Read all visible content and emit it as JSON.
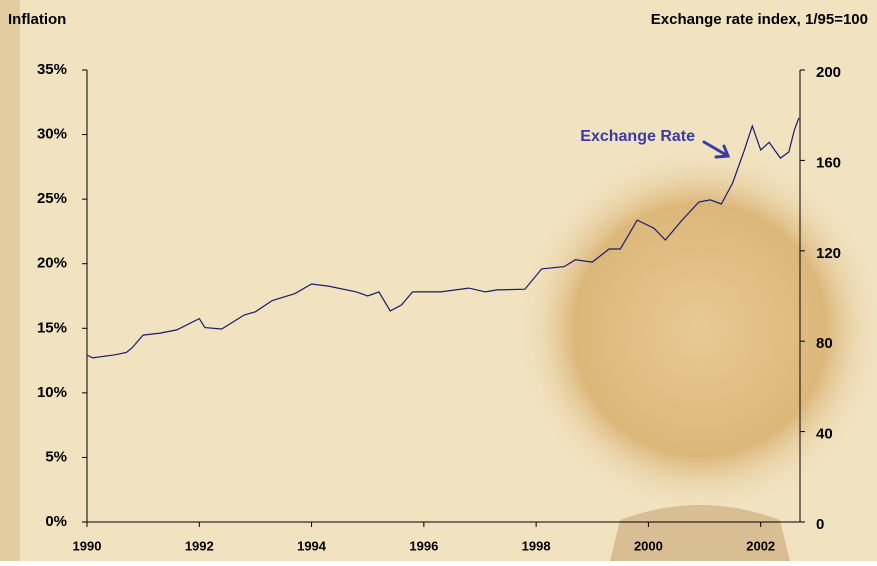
{
  "chart_data": {
    "type": "line",
    "y_label": "Inflation",
    "y2_label": "Exchange rate index, 1/95=100",
    "annotation": "Exchange Rate",
    "xlim": [
      1990,
      2002.7
    ],
    "xticks": [
      1990,
      1992,
      1994,
      1996,
      1998,
      2000,
      2002
    ],
    "ylim": [
      0,
      35
    ],
    "yticks": [
      {
        "value": 0,
        "label": "0%"
      },
      {
        "value": 5,
        "label": "5%"
      },
      {
        "value": 10,
        "label": "10%"
      },
      {
        "value": 15,
        "label": "15%"
      },
      {
        "value": 20,
        "label": "20%"
      },
      {
        "value": 25,
        "label": "25%"
      },
      {
        "value": 30,
        "label": "30%"
      },
      {
        "value": 35,
        "label": "35%"
      }
    ],
    "y2lim": [
      0,
      200
    ],
    "y2ticks": [
      0,
      40,
      80,
      120,
      160,
      200
    ],
    "x": [
      1990.0,
      1990.1,
      1990.5,
      1990.7,
      1990.8,
      1991.0,
      1991.3,
      1991.6,
      1992.0,
      1992.1,
      1992.4,
      1992.8,
      1993.0,
      1993.3,
      1993.7,
      1994.0,
      1994.3,
      1994.8,
      1995.0,
      1995.2,
      1995.4,
      1995.6,
      1995.8,
      1996.3,
      1996.8,
      1997.1,
      1997.3,
      1997.8,
      1998.1,
      1998.5,
      1998.7,
      1999.0,
      1999.3,
      1999.5,
      1999.8,
      2000.1,
      2000.3,
      2000.6,
      2000.9,
      2001.1,
      2001.3,
      2001.5,
      2001.7,
      2001.85,
      2002.0,
      2002.15,
      2002.35,
      2002.5,
      2002.6,
      2002.68
    ],
    "series": [
      {
        "name": "Exchange Rate",
        "color": "#1a1a6e",
        "axis": "y2",
        "values": [
          73.9,
          72.6,
          74,
          75,
          77,
          82.7,
          83.6,
          85,
          90,
          86,
          85.4,
          91.6,
          93,
          98,
          101,
          105.3,
          104.4,
          101.8,
          100,
          101.8,
          93.4,
          96,
          101.8,
          101.8,
          103.5,
          101.8,
          102.7,
          103,
          112,
          113,
          116,
          115,
          120.8,
          120.8,
          133.6,
          130,
          124.8,
          133.6,
          141.6,
          142.5,
          140.7,
          150,
          164,
          175.2,
          164.6,
          168,
          161,
          163.7,
          173.5,
          178.8
        ]
      }
    ],
    "annotation_color": "#3a3aa8"
  }
}
